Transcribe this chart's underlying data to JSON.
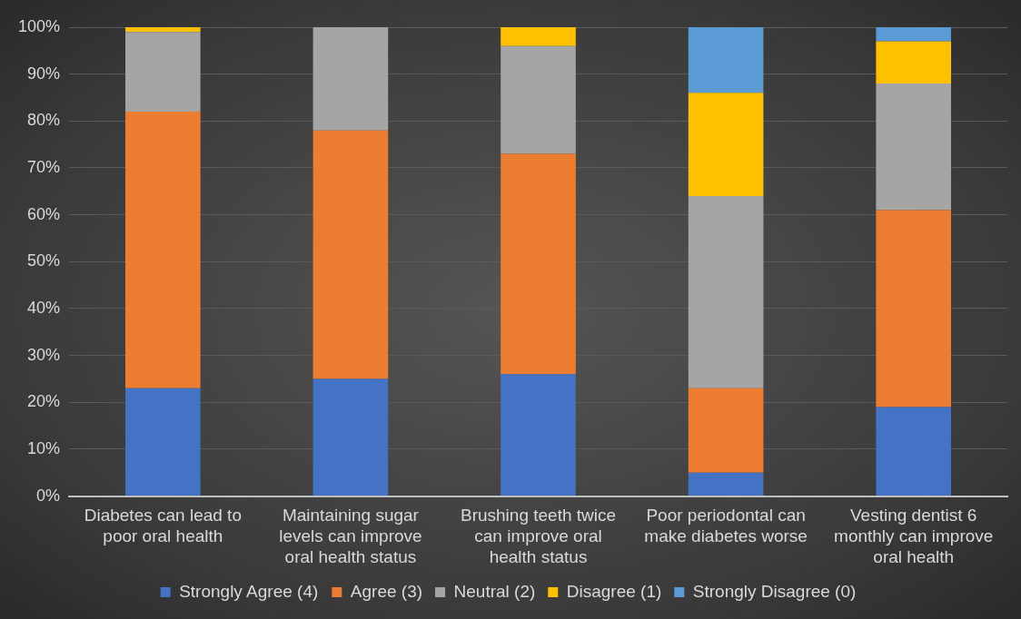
{
  "chart_data": {
    "type": "bar",
    "stacked": true,
    "categories": [
      "Diabetes can lead to poor oral health",
      "Maintaining sugar levels can improve oral health status",
      "Brushing teeth twice can improve oral health status",
      "Poor periodontal can make diabetes worse",
      "Vesting dentist 6 monthly can improve oral health"
    ],
    "series": [
      {
        "name": "Strongly Agree (4)",
        "color": "#4472c4",
        "values": [
          23,
          25,
          26,
          5,
          19
        ]
      },
      {
        "name": "Agree (3)",
        "color": "#ed7d31",
        "values": [
          59,
          53,
          47,
          18,
          42
        ]
      },
      {
        "name": "Neutral (2)",
        "color": "#a5a5a5",
        "values": [
          17,
          22,
          23,
          41,
          27
        ]
      },
      {
        "name": "Disagree (1)",
        "color": "#ffc000",
        "values": [
          1,
          0,
          4,
          22,
          9
        ]
      },
      {
        "name": "Strongly Disagree (0)",
        "color": "#5b9bd5",
        "values": [
          0,
          0,
          0,
          14,
          3
        ]
      }
    ],
    "ylim": [
      0,
      100
    ],
    "yticks": [
      {
        "value": 0,
        "label": "0%"
      },
      {
        "value": 10,
        "label": "10%"
      },
      {
        "value": 20,
        "label": "20%"
      },
      {
        "value": 30,
        "label": "30%"
      },
      {
        "value": 40,
        "label": "40%"
      },
      {
        "value": 50,
        "label": "50%"
      },
      {
        "value": 60,
        "label": "60%"
      },
      {
        "value": 70,
        "label": "70%"
      },
      {
        "value": 80,
        "label": "80%"
      },
      {
        "value": 90,
        "label": "90%"
      },
      {
        "value": 100,
        "label": "100%"
      }
    ],
    "grid": "y",
    "legend": "bottom"
  }
}
